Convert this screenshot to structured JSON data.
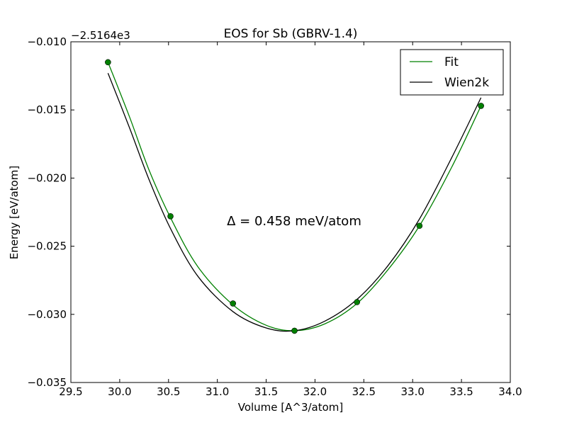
{
  "chart_data": {
    "type": "line",
    "title": "EOS for Sb (GBRV-1.4)",
    "xlabel": "Volume [A^3/atom]",
    "ylabel": "Energy [eV/atom]",
    "offset_label": "−2.5164e3",
    "annotation": "Δ = 0.458 meV/atom",
    "xlim": [
      29.5,
      34.0
    ],
    "ylim": [
      -0.035,
      -0.01
    ],
    "x_ticks": [
      29.5,
      30.0,
      30.5,
      31.0,
      31.5,
      32.0,
      32.5,
      33.0,
      33.5,
      34.0
    ],
    "x_tick_labels": [
      "29.5",
      "30.0",
      "30.5",
      "31.0",
      "31.5",
      "32.0",
      "32.5",
      "33.0",
      "33.5",
      "34.0"
    ],
    "y_ticks": [
      -0.01,
      -0.015,
      -0.02,
      -0.025,
      -0.03,
      -0.035
    ],
    "y_tick_labels": [
      "−0.010",
      "−0.015",
      "−0.020",
      "−0.025",
      "−0.030",
      "−0.035"
    ],
    "legend": {
      "placement": "top-right",
      "entries": [
        "Fit",
        "Wien2k"
      ]
    },
    "series": [
      {
        "name": "Fit",
        "color": "#008000",
        "style": "line",
        "x": [
          29.88,
          30.1,
          30.3,
          30.52,
          30.8,
          31.16,
          31.5,
          31.79,
          32.1,
          32.43,
          32.75,
          33.07,
          33.4,
          33.7
        ],
        "y": [
          -0.0115,
          -0.0155,
          -0.0194,
          -0.0229,
          -0.0265,
          -0.0293,
          -0.0308,
          -0.0312,
          -0.0307,
          -0.0292,
          -0.0267,
          -0.0235,
          -0.0192,
          -0.0147
        ]
      },
      {
        "name": "Wien2k",
        "color": "#000000",
        "style": "line",
        "x": [
          29.88,
          30.1,
          30.3,
          30.52,
          30.8,
          31.16,
          31.5,
          31.79,
          32.1,
          32.43,
          32.75,
          33.07,
          33.4,
          33.7
        ],
        "y": [
          -0.0123,
          -0.0163,
          -0.0201,
          -0.0237,
          -0.0272,
          -0.0298,
          -0.031,
          -0.0312,
          -0.0305,
          -0.0289,
          -0.0264,
          -0.023,
          -0.0185,
          -0.0141
        ]
      },
      {
        "name": "",
        "color": "#008000",
        "style": "markers",
        "x": [
          29.88,
          30.52,
          31.16,
          31.79,
          32.43,
          33.07,
          33.7
        ],
        "y": [
          -0.0115,
          -0.0228,
          -0.0292,
          -0.0312,
          -0.0291,
          -0.0235,
          -0.0147
        ]
      }
    ]
  }
}
